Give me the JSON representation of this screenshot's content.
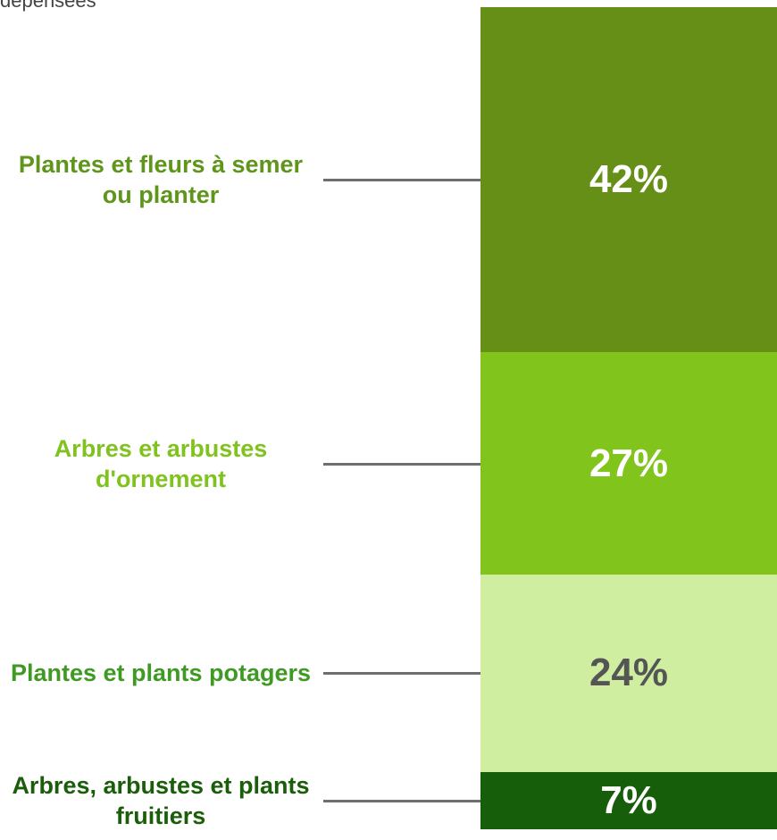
{
  "chart_data": {
    "type": "stacked-bar",
    "subtitle": "dépensées",
    "ylim": [
      0,
      100
    ],
    "series": [
      {
        "name": "Plantes et fleurs à semer ou planter",
        "color": "#658f16",
        "name_color": "#5f951a",
        "label_color": "#ffffff",
        "values": [
          42
        ],
        "value_labels": [
          "42%"
        ]
      },
      {
        "name": "Arbres et arbustes d'ornement",
        "color": "#80c41c",
        "name_color": "#80c21e",
        "label_color": "#ffffff",
        "values": [
          27
        ],
        "value_labels": [
          "27%"
        ]
      },
      {
        "name": "Plantes et plants potagers",
        "color": "#cfeea0",
        "name_color": "#3f9a24",
        "label_color": "#555555",
        "values": [
          24
        ],
        "value_labels": [
          "24%"
        ]
      },
      {
        "name": "Arbres, arbustes et plants fruitiers",
        "color": "#175e0a",
        "name_color": "#1a5e0a",
        "label_color": "#ffffff",
        "values": [
          7
        ],
        "value_labels": [
          "7%"
        ]
      }
    ]
  }
}
